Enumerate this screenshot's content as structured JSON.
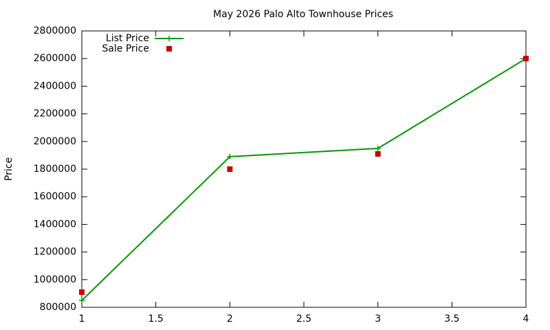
{
  "chart_data": {
    "type": "line",
    "title": "May 2026 Palo Alto Townhouse Prices",
    "y_label": "Price",
    "x": [
      1,
      2,
      3,
      4
    ],
    "series": [
      {
        "name": "List Price",
        "color": "#009900",
        "style": "linespoints",
        "marker": "plus",
        "values": [
          850000,
          1890000,
          1950000,
          2600000
        ]
      },
      {
        "name": "Sale Price",
        "color": "#cc0000",
        "style": "points",
        "marker": "square",
        "values": [
          910000,
          1800000,
          1910000,
          2600000
        ]
      }
    ],
    "xlim": [
      1,
      4
    ],
    "xticks": [
      1,
      1.5,
      2,
      2.5,
      3,
      3.5,
      4
    ],
    "ylim": [
      800000,
      2800000
    ],
    "yticks": [
      800000,
      1000000,
      1200000,
      1400000,
      1600000,
      1800000,
      2000000,
      2200000,
      2400000,
      2600000,
      2800000
    ],
    "grid": false,
    "legend": "top-left"
  }
}
